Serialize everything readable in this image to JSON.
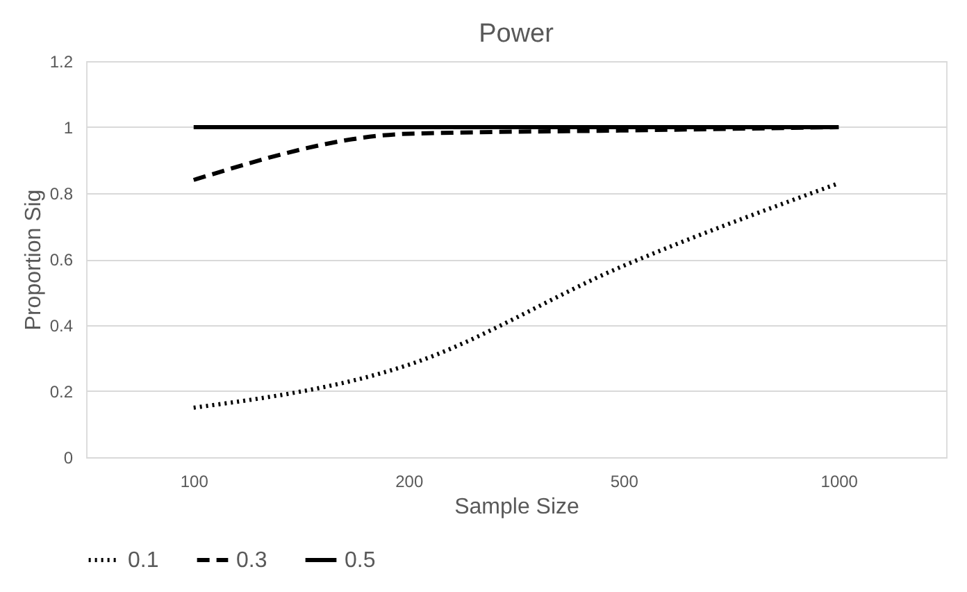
{
  "chart_data": {
    "type": "line",
    "title": "Power",
    "xlabel": "Sample Size",
    "ylabel": "Proportion Sig",
    "categories": [
      "100",
      "200",
      "500",
      "1000"
    ],
    "series": [
      {
        "name": "0.1",
        "color": "#000000",
        "values": [
          0.15,
          0.28,
          0.58,
          0.83
        ],
        "line_style": "dotted"
      },
      {
        "name": "0.3",
        "color": "#000000",
        "values": [
          0.84,
          0.98,
          0.99,
          1.0
        ],
        "line_style": "dashed"
      },
      {
        "name": "0.5",
        "color": "#000000",
        "values": [
          1.0,
          1.0,
          1.0,
          1.0
        ],
        "line_style": "solid"
      }
    ],
    "ylim": [
      0,
      1.2
    ],
    "yticks": [
      0,
      0.2,
      0.4,
      0.6,
      0.8,
      1,
      1.2
    ],
    "grid": "y",
    "legend": "bottom",
    "marker": "none"
  }
}
